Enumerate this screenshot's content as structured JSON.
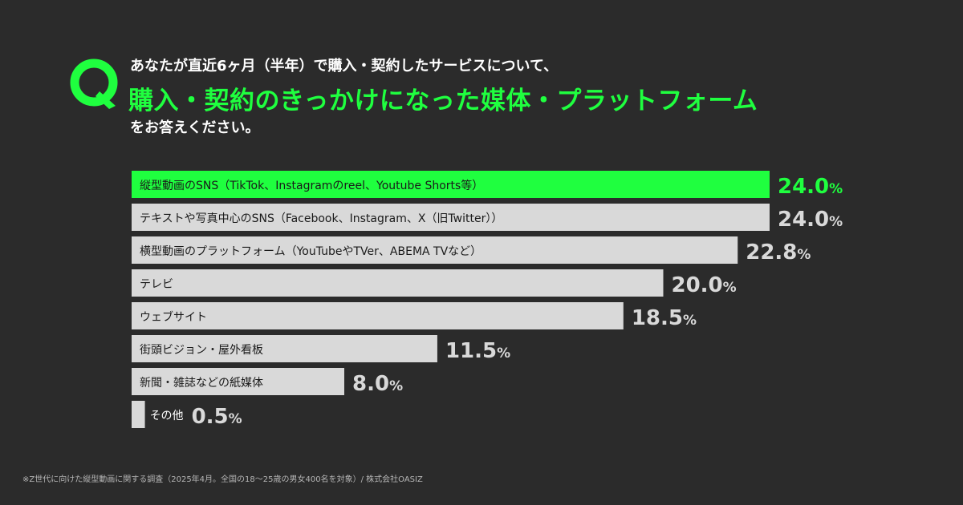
{
  "question": {
    "badge": "Q",
    "line1": "あなたが直近6ヶ月（半年）で購入・契約したサービスについて、",
    "line2": "購入・契約のきっかけになった媒体・プラットフォーム",
    "line3": "をお答えください。"
  },
  "colors": {
    "background": "#2b2b2b",
    "accent": "#1fff3f",
    "bar": "#d9d9d9",
    "bar_label_text": "#1a1a1a",
    "value_text": "#d9d9d9"
  },
  "chart_data": {
    "type": "bar",
    "orientation": "horizontal",
    "categories": [
      "縦型動画のSNS（TikTok、Instagramのreel、Youtube Shorts等）",
      "テキストや写真中心のSNS（Facebook、Instagram、X（旧Twitter））",
      "横型動画のプラットフォーム（YouTubeやTVer、ABEMA TVなど）",
      "テレビ",
      "ウェブサイト",
      "街頭ビジョン・屋外看板",
      "新聞・雑誌などの紙媒体",
      "その他"
    ],
    "values": [
      24.0,
      24.0,
      22.8,
      20.0,
      18.5,
      11.5,
      8.0,
      0.5
    ],
    "value_labels": [
      "24.0",
      "24.0",
      "22.8",
      "20.0",
      "18.5",
      "11.5",
      "8.0",
      "0.5"
    ],
    "unit": "%",
    "highlight_index": 0,
    "xlim": [
      0,
      24.0
    ],
    "grid": false,
    "legend": "none"
  },
  "footnote": "※Z世代に向けた縦型動画に関する調査（2025年4月。全国の18〜25歳の男女400名を対象）/ 株式会社OASIZ"
}
